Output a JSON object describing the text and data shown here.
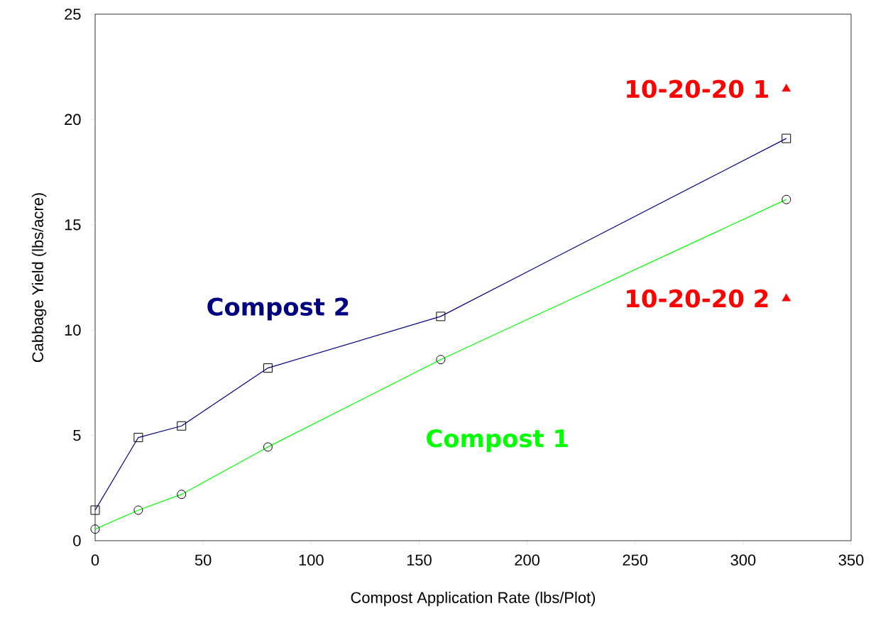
{
  "chart_data": {
    "type": "line",
    "xlabel": "Compost Application Rate (lbs/Plot)",
    "ylabel": "Cabbage Yield (lbs/acre)",
    "xlim": [
      0,
      350
    ],
    "ylim": [
      0,
      25
    ],
    "xticks": [
      0,
      50,
      100,
      150,
      200,
      250,
      300,
      350
    ],
    "yticks": [
      0,
      5,
      10,
      15,
      20,
      25
    ],
    "grid": false,
    "series": [
      {
        "name": "Compost 2",
        "marker": "square",
        "color": "#000080",
        "x": [
          0,
          20,
          40,
          80,
          160,
          320
        ],
        "values": [
          1.45,
          4.9,
          5.45,
          8.2,
          10.65,
          19.1
        ]
      },
      {
        "name": "Compost 1",
        "marker": "circle",
        "color": "#00ff00",
        "x": [
          0,
          20,
          40,
          80,
          160,
          320
        ],
        "values": [
          0.55,
          1.45,
          2.2,
          4.45,
          8.6,
          16.2
        ]
      },
      {
        "name": "10-20-20 1",
        "type": "scatter",
        "marker": "triangle",
        "color": "#ff0000",
        "x": [
          320
        ],
        "values": [
          21.45
        ]
      },
      {
        "name": "10-20-20 2",
        "type": "scatter",
        "marker": "triangle",
        "color": "#ff0000",
        "x": [
          320
        ],
        "values": [
          11.5
        ]
      }
    ]
  }
}
